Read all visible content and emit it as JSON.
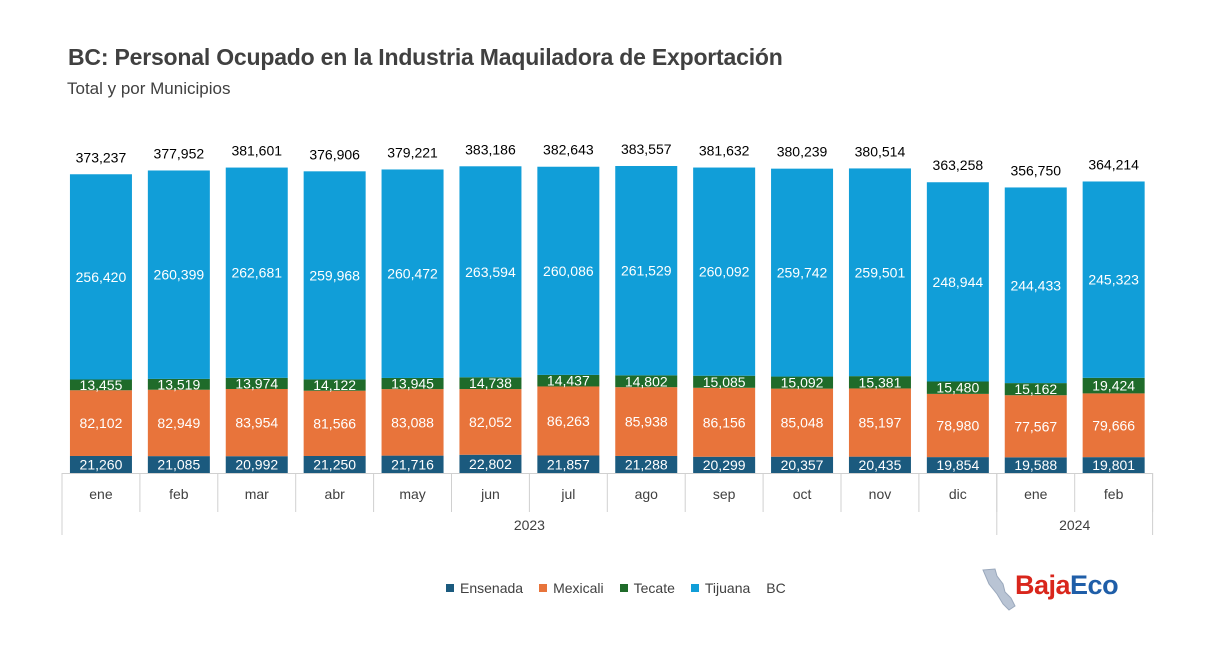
{
  "title": "BC: Personal Ocupado en la Industria Maquiladora de Exportación",
  "subtitle": "Total y por Municipios",
  "logo": {
    "part1": "Baja",
    "part2": "Eco"
  },
  "chart_data": {
    "type": "bar",
    "stacked": true,
    "categories": [
      "ene",
      "feb",
      "mar",
      "abr",
      "may",
      "jun",
      "jul",
      "ago",
      "sep",
      "oct",
      "nov",
      "dic",
      "ene",
      "feb"
    ],
    "year_groups": [
      {
        "label": "2023",
        "count": 12
      },
      {
        "label": "2024",
        "count": 2
      }
    ],
    "series": [
      {
        "name": "Ensenada",
        "color": "#1b5a7e",
        "values": [
          21260,
          21085,
          20992,
          21250,
          21716,
          22802,
          21857,
          21288,
          20299,
          20357,
          20435,
          19854,
          19588,
          19801
        ]
      },
      {
        "name": "Mexicali",
        "color": "#e8743b",
        "values": [
          82102,
          82949,
          83954,
          81566,
          83088,
          82052,
          86263,
          85938,
          86156,
          85048,
          85197,
          78980,
          77567,
          79666
        ]
      },
      {
        "name": "Tecate",
        "color": "#1f6b2a",
        "values": [
          13455,
          13519,
          13974,
          14122,
          13945,
          14738,
          14437,
          14802,
          15085,
          15092,
          15381,
          15480,
          15162,
          19424
        ]
      },
      {
        "name": "Tijuana",
        "color": "#119ed8",
        "values": [
          256420,
          260399,
          262681,
          259968,
          260472,
          263594,
          260086,
          261529,
          260092,
          259742,
          259501,
          248944,
          244433,
          245323
        ]
      }
    ],
    "totals": {
      "name": "BC",
      "values": [
        373237,
        377952,
        381601,
        376906,
        379221,
        383186,
        382643,
        383557,
        381632,
        380239,
        380514,
        363258,
        356750,
        364214
      ]
    },
    "legend_position": "bottom",
    "grid": false
  }
}
